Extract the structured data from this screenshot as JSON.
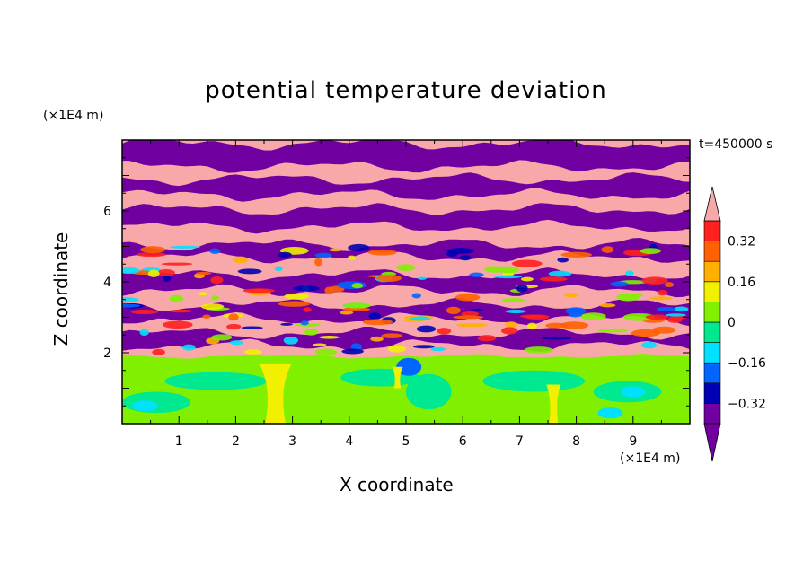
{
  "chart_data": {
    "type": "heatmap",
    "title": "potential temperature deviation",
    "time_label": "t=450000 s",
    "xlabel": "X coordinate",
    "ylabel": "Z coordinate",
    "x_unit": "(×1E4 m)",
    "y_unit": "(×1E4 m)",
    "xlim": [
      0,
      10
    ],
    "ylim": [
      0,
      8
    ],
    "x_ticks": [
      1,
      2,
      3,
      4,
      5,
      6,
      7,
      8,
      9
    ],
    "y_ticks": [
      2,
      4,
      6
    ],
    "colorbar": {
      "levels": [
        -0.4,
        -0.32,
        -0.24,
        -0.16,
        -0.08,
        0,
        0.08,
        0.16,
        0.24,
        0.32,
        0.4
      ],
      "labels": [
        "0.32",
        "0.16",
        "0",
        "−0.16",
        "−0.32"
      ],
      "label_values": [
        0.32,
        0.16,
        0,
        -0.16,
        -0.32
      ],
      "colors_low_to_high": [
        "#7000a0",
        "#0000b4",
        "#0066ff",
        "#00e0ff",
        "#00e890",
        "#80f000",
        "#f0f000",
        "#ffb000",
        "#ff6000",
        "#ff2020"
      ],
      "under_color": "#7000a0",
      "over_color": "#f8a8a8",
      "extend": "both"
    },
    "field_description_bands": [
      {
        "z_range": [
          0,
          1.9
        ],
        "dominant": "green-cyan (−0.16 to 0.08) with yellow plumes near x=2.7 and x=7.6"
      },
      {
        "z_range": [
          1.9,
          8
        ],
        "dominant": "alternating layers of over-range pink and under-range purple"
      }
    ]
  }
}
